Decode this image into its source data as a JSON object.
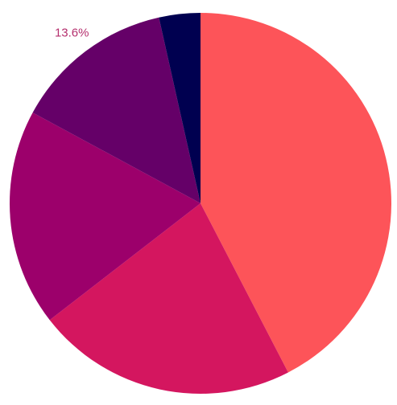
{
  "chart_data": {
    "type": "pie",
    "values": [
      42.4,
      22.1,
      18.4,
      13.6,
      3.5
    ],
    "value_labels": [
      null,
      null,
      null,
      "13.6%",
      null
    ],
    "colors": [
      "#fd5459",
      "#d4165f",
      "#9c006b",
      "#650068",
      "#000050"
    ],
    "label_color": "#b5306e"
  }
}
